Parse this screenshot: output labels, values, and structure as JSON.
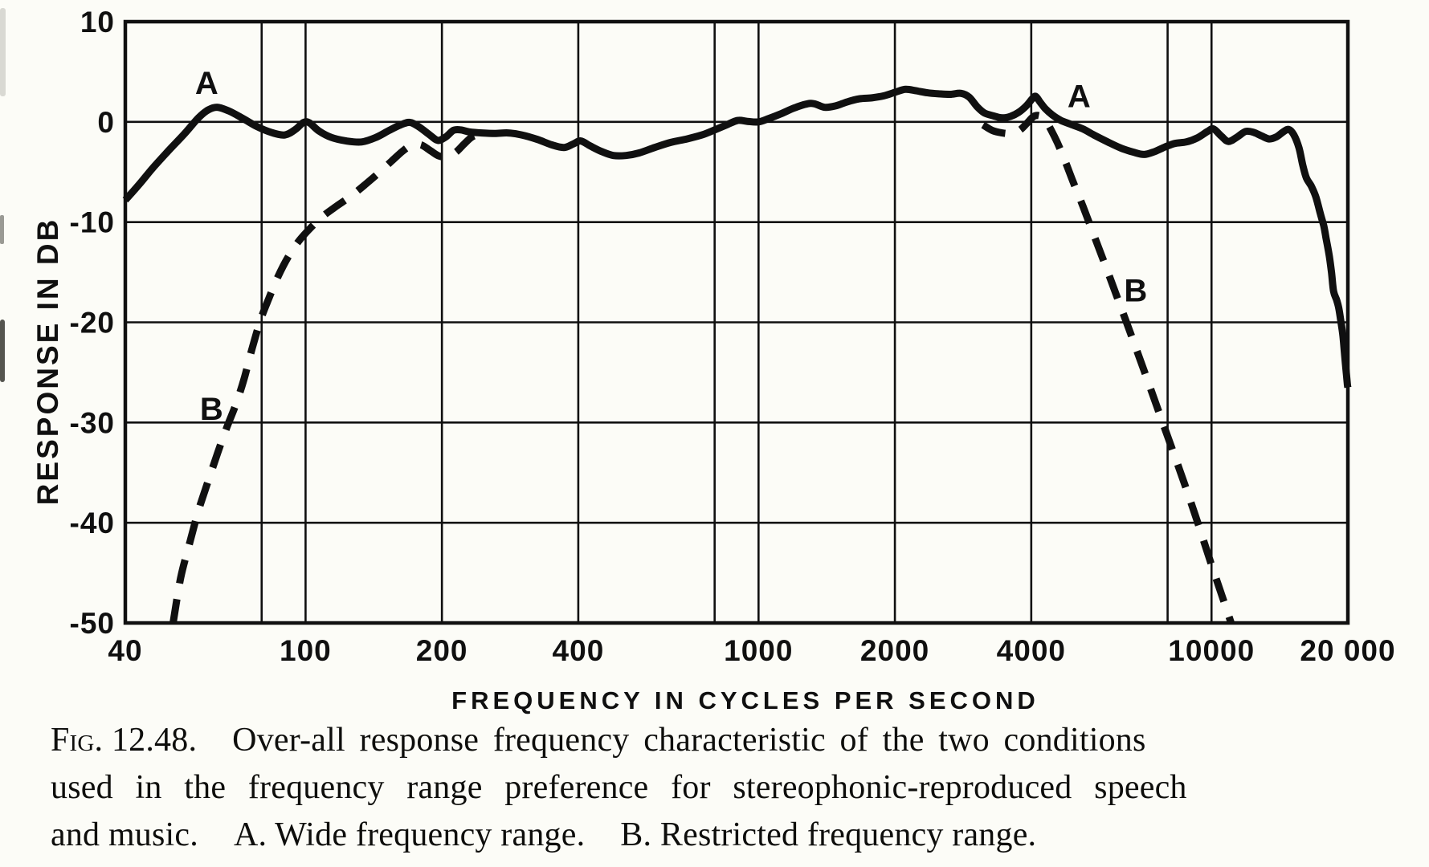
{
  "figure": {
    "background_color": "#fcfcf7",
    "ink_color": "#101010"
  },
  "chart_data": {
    "type": "line",
    "title": "",
    "xlabel": "FREQUENCY IN CYCLES PER SECOND",
    "ylabel": "RESPONSE IN DB",
    "xscale": "log",
    "yscale": "linear",
    "xlim": [
      40,
      20000
    ],
    "ylim": [
      -50,
      10
    ],
    "grid": true,
    "x_gridlines": [
      40,
      80,
      100,
      200,
      400,
      800,
      1000,
      2000,
      4000,
      8000,
      10000,
      20000
    ],
    "y_gridlines": [
      10,
      0,
      -10,
      -20,
      -30,
      -40,
      -50
    ],
    "x_ticks": [
      {
        "value": 40,
        "label": "40"
      },
      {
        "value": 100,
        "label": "100"
      },
      {
        "value": 200,
        "label": "200"
      },
      {
        "value": 400,
        "label": "400"
      },
      {
        "value": 1000,
        "label": "1000"
      },
      {
        "value": 2000,
        "label": "2000"
      },
      {
        "value": 4000,
        "label": "4000"
      },
      {
        "value": 10000,
        "label": "10000"
      },
      {
        "value": 20000,
        "label": "20 000"
      }
    ],
    "y_ticks": [
      {
        "value": 10,
        "label": "10"
      },
      {
        "value": 0,
        "label": "0"
      },
      {
        "value": -10,
        "label": "-10"
      },
      {
        "value": -20,
        "label": "-20"
      },
      {
        "value": -30,
        "label": "-30"
      },
      {
        "value": -40,
        "label": "-40"
      },
      {
        "value": -50,
        "label": "-50"
      }
    ],
    "series": [
      {
        "name": "A",
        "description": "Wide frequency range",
        "style": "solid",
        "segments": [
          [
            [
              40,
              -7.8
            ],
            [
              43,
              -6.2
            ],
            [
              46,
              -4.6
            ],
            [
              50,
              -2.8
            ],
            [
              54,
              -1.2
            ],
            [
              58,
              0.4
            ],
            [
              61,
              1.2
            ],
            [
              64,
              1.45
            ],
            [
              68,
              1.05
            ],
            [
              73,
              0.3
            ],
            [
              78,
              -0.45
            ],
            [
              84,
              -1.05
            ],
            [
              90,
              -1.3
            ],
            [
              95,
              -0.75
            ],
            [
              99,
              -0.05
            ],
            [
              102,
              -0.1
            ],
            [
              107,
              -0.9
            ],
            [
              114,
              -1.55
            ],
            [
              123,
              -1.9
            ],
            [
              133,
              -2.0
            ],
            [
              143,
              -1.55
            ],
            [
              153,
              -0.85
            ],
            [
              162,
              -0.3
            ],
            [
              170,
              -0.05
            ],
            [
              178,
              -0.5
            ],
            [
              188,
              -1.3
            ],
            [
              196,
              -1.85
            ],
            [
              204,
              -1.5
            ],
            [
              212,
              -0.85
            ],
            [
              220,
              -0.8
            ],
            [
              230,
              -1.0
            ],
            [
              245,
              -1.1
            ],
            [
              262,
              -1.15
            ],
            [
              280,
              -1.1
            ],
            [
              300,
              -1.3
            ],
            [
              325,
              -1.75
            ],
            [
              350,
              -2.3
            ],
            [
              372,
              -2.55
            ],
            [
              390,
              -2.2
            ],
            [
              405,
              -1.9
            ],
            [
              425,
              -2.4
            ],
            [
              450,
              -2.95
            ],
            [
              478,
              -3.35
            ],
            [
              510,
              -3.35
            ],
            [
              545,
              -3.1
            ],
            [
              590,
              -2.55
            ],
            [
              640,
              -2.05
            ],
            [
              695,
              -1.7
            ],
            [
              750,
              -1.3
            ],
            [
              800,
              -0.8
            ],
            [
              850,
              -0.3
            ],
            [
              900,
              0.15
            ],
            [
              945,
              0.05
            ],
            [
              1000,
              0.0
            ],
            [
              1055,
              0.35
            ],
            [
              1120,
              0.8
            ],
            [
              1200,
              1.4
            ],
            [
              1280,
              1.8
            ],
            [
              1330,
              1.8
            ],
            [
              1400,
              1.45
            ],
            [
              1480,
              1.6
            ],
            [
              1570,
              2.0
            ],
            [
              1670,
              2.3
            ],
            [
              1780,
              2.4
            ],
            [
              1890,
              2.6
            ],
            [
              2000,
              2.95
            ],
            [
              2110,
              3.25
            ],
            [
              2230,
              3.1
            ],
            [
              2360,
              2.9
            ],
            [
              2500,
              2.8
            ],
            [
              2650,
              2.75
            ],
            [
              2800,
              2.85
            ],
            [
              2920,
              2.45
            ],
            [
              3040,
              1.5
            ],
            [
              3150,
              0.9
            ],
            [
              3300,
              0.6
            ],
            [
              3450,
              0.4
            ],
            [
              3600,
              0.55
            ],
            [
              3750,
              0.95
            ],
            [
              3900,
              1.6
            ],
            [
              4020,
              2.3
            ],
            [
              4090,
              2.55
            ],
            [
              4180,
              2.0
            ],
            [
              4300,
              1.3
            ],
            [
              4450,
              0.7
            ],
            [
              4650,
              0.15
            ],
            [
              4900,
              -0.25
            ],
            [
              5200,
              -0.7
            ],
            [
              5500,
              -1.3
            ],
            [
              5900,
              -2.0
            ],
            [
              6300,
              -2.6
            ],
            [
              6700,
              -3.0
            ],
            [
              7100,
              -3.25
            ],
            [
              7500,
              -2.95
            ],
            [
              7900,
              -2.5
            ],
            [
              8300,
              -2.15
            ],
            [
              8800,
              -2.0
            ],
            [
              9300,
              -1.6
            ],
            [
              9800,
              -0.95
            ],
            [
              10100,
              -0.7
            ],
            [
              10500,
              -1.4
            ],
            [
              10900,
              -1.95
            ],
            [
              11400,
              -1.5
            ],
            [
              11900,
              -0.95
            ],
            [
              12400,
              -1.05
            ],
            [
              12900,
              -1.4
            ],
            [
              13400,
              -1.7
            ],
            [
              13900,
              -1.5
            ],
            [
              14400,
              -1.0
            ],
            [
              14800,
              -0.75
            ],
            [
              15200,
              -1.3
            ],
            [
              15600,
              -2.6
            ],
            [
              15900,
              -4.3
            ],
            [
              16200,
              -5.6
            ],
            [
              16600,
              -6.4
            ],
            [
              17000,
              -7.5
            ],
            [
              17400,
              -9.2
            ],
            [
              17700,
              -10.4
            ],
            [
              17900,
              -11.6
            ],
            [
              18200,
              -13.4
            ],
            [
              18400,
              -15.0
            ],
            [
              18600,
              -16.9
            ],
            [
              18900,
              -17.8
            ],
            [
              19100,
              -18.6
            ],
            [
              19300,
              -19.9
            ],
            [
              19500,
              -21.3
            ],
            [
              19650,
              -23.0
            ],
            [
              19800,
              -24.6
            ],
            [
              19950,
              -26.2
            ],
            [
              20000,
              -26.5
            ]
          ]
        ]
      },
      {
        "name": "B",
        "description": "Restricted frequency range",
        "style": "dashed",
        "segments": [
          [
            [
              51,
              -50
            ],
            [
              53,
              -45.5
            ],
            [
              55.5,
              -42
            ],
            [
              58,
              -38.8
            ],
            [
              61,
              -35.8
            ],
            [
              64,
              -33
            ],
            [
              67,
              -30.5
            ],
            [
              70,
              -28.3
            ],
            [
              73,
              -25.8
            ],
            [
              76,
              -22.8
            ],
            [
              79.5,
              -19.8
            ],
            [
              83,
              -17.6
            ],
            [
              87,
              -15.4
            ],
            [
              92,
              -13.3
            ],
            [
              97,
              -11.8
            ],
            [
              103,
              -10.5
            ],
            [
              110,
              -9.3
            ],
            [
              118,
              -8.3
            ],
            [
              126,
              -7.4
            ],
            [
              135,
              -6.3
            ],
            [
              145,
              -5.1
            ],
            [
              155,
              -3.9
            ],
            [
              164,
              -2.9
            ],
            [
              172,
              -2.3
            ],
            [
              180,
              -2.3
            ],
            [
              189,
              -2.9
            ],
            [
              197,
              -3.4
            ],
            [
              206,
              -3.5
            ],
            [
              215,
              -3.0
            ],
            [
              224,
              -2.2
            ],
            [
              233,
              -1.5
            ],
            [
              243,
              -1.2
            ]
          ],
          [
            [
              3130,
              -0.3
            ],
            [
              3280,
              -0.85
            ],
            [
              3450,
              -1.1
            ],
            [
              3620,
              -1.15
            ],
            [
              3780,
              -0.8
            ],
            [
              3920,
              -0.1
            ],
            [
              4050,
              0.55
            ],
            [
              4180,
              0.6
            ],
            [
              4300,
              0.15
            ],
            [
              4430,
              -0.85
            ],
            [
              4570,
              -2.1
            ],
            [
              4750,
              -3.9
            ],
            [
              4950,
              -6.0
            ],
            [
              5200,
              -8.4
            ],
            [
              5500,
              -11.3
            ],
            [
              5850,
              -14.5
            ],
            [
              6250,
              -18.0
            ],
            [
              6700,
              -21.7
            ],
            [
              7200,
              -25.6
            ],
            [
              7800,
              -30.0
            ],
            [
              8500,
              -34.7
            ],
            [
              9200,
              -39.2
            ],
            [
              10000,
              -44.2
            ],
            [
              10900,
              -49.2
            ],
            [
              11050,
              -50
            ]
          ]
        ]
      }
    ],
    "curve_labels": [
      {
        "text": "A",
        "series": "A",
        "f": 60.5,
        "db": 3.9
      },
      {
        "text": "A",
        "series": "A",
        "f": 5100,
        "db": 2.6
      },
      {
        "text": "B",
        "series": "B",
        "f": 62,
        "db": -28.6
      },
      {
        "text": "B",
        "series": "B",
        "f": 6800,
        "db": -16.8
      }
    ]
  },
  "caption": {
    "fig_label": "Fig. 12.48.",
    "line1_rest": "Over-all response frequency characteristic of the two conditions",
    "line2": "used in the frequency range preference for stereophonic-reproduced speech",
    "line3_parts": [
      "and music.",
      "A. Wide frequency range.",
      "B. Restricted frequency range."
    ]
  }
}
